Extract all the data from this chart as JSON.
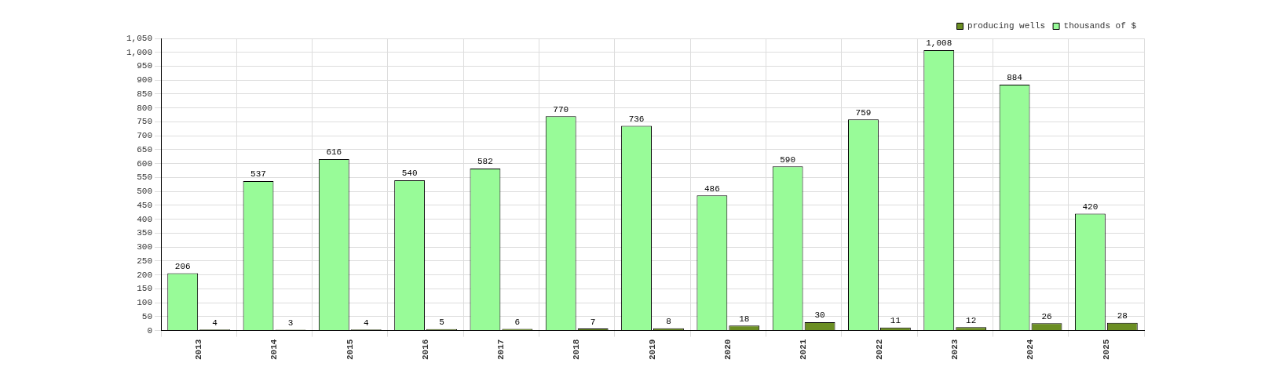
{
  "chart_data": {
    "type": "bar",
    "categories": [
      "2013",
      "2014",
      "2015",
      "2016",
      "2017",
      "2018",
      "2019",
      "2020",
      "2021",
      "2022",
      "2023",
      "2024",
      "2025"
    ],
    "series": [
      {
        "name": "producing wells",
        "color": "#6b8e23",
        "values": [
          4,
          3,
          4,
          5,
          6,
          7,
          8,
          18,
          30,
          11,
          12,
          26,
          28
        ],
        "value_labels": [
          "4",
          "3",
          "4",
          "5",
          "6",
          "7",
          "8",
          "18",
          "30",
          "11",
          "12",
          "26",
          "28"
        ]
      },
      {
        "name": "thousands of $",
        "color": "#98fb98",
        "values": [
          206,
          537,
          616,
          540,
          582,
          770,
          736,
          486,
          590,
          759,
          1008,
          884,
          420
        ],
        "value_labels": [
          "206",
          "537",
          "616",
          "540",
          "582",
          "770",
          "736",
          "486",
          "590",
          "759",
          "1,008",
          "884",
          "420"
        ]
      }
    ],
    "ylim": [
      0,
      1050
    ],
    "yticks": [
      0,
      50,
      100,
      150,
      200,
      250,
      300,
      350,
      400,
      450,
      500,
      550,
      600,
      650,
      700,
      750,
      800,
      850,
      900,
      950,
      {
        "value": 1000,
        "label": "1,000"
      },
      {
        "value": 1050,
        "label": "1,050"
      }
    ],
    "grid": true,
    "legend": "top right"
  }
}
